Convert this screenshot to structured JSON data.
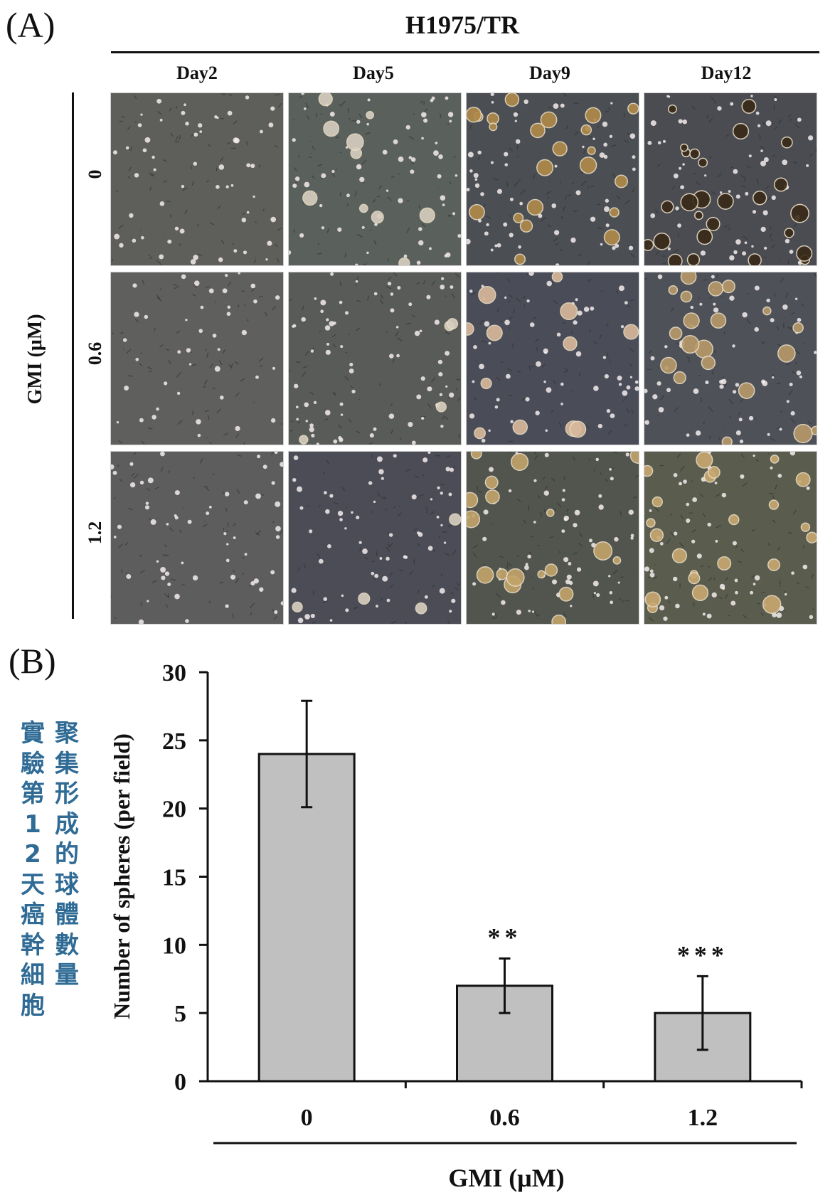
{
  "panel_a": {
    "label": "(A)",
    "cell_line": "H1975/TR",
    "columns": [
      "Day2",
      "Day5",
      "Day9",
      "Day12"
    ],
    "row_axis_title": "GMI (μM)",
    "rows": [
      "0",
      "0.6",
      "1.2"
    ],
    "micrographs": [
      {
        "name": "micrograph-0-day2",
        "tint": "#5e5e5a",
        "cells": 55,
        "spheres": 0,
        "sphere_color": "#c9b48a"
      },
      {
        "name": "micrograph-0-day5",
        "tint": "#5a605b",
        "cells": 60,
        "spheres": 10,
        "sphere_color": "#d8cfc0"
      },
      {
        "name": "micrograph-0-day9",
        "tint": "#4b4e52",
        "cells": 60,
        "spheres": 22,
        "sphere_color": "#b08a4a"
      },
      {
        "name": "micrograph-0-day12",
        "tint": "#4a4c52",
        "cells": 55,
        "spheres": 26,
        "sphere_color": "#3a2a18"
      },
      {
        "name": "micrograph-06-day2",
        "tint": "#5f605e",
        "cells": 40,
        "spheres": 0,
        "sphere_color": "#c9b48a"
      },
      {
        "name": "micrograph-06-day5",
        "tint": "#595b58",
        "cells": 70,
        "spheres": 4,
        "sphere_color": "#d8cfc0"
      },
      {
        "name": "micrograph-06-day9",
        "tint": "#4a4d58",
        "cells": 55,
        "spheres": 12,
        "sphere_color": "#d9b99a"
      },
      {
        "name": "micrograph-06-day12",
        "tint": "#4e5157",
        "cells": 55,
        "spheres": 20,
        "sphere_color": "#b89a6a"
      },
      {
        "name": "micrograph-12-day2",
        "tint": "#5c5d5c",
        "cells": 55,
        "spheres": 0,
        "sphere_color": "#c9b48a"
      },
      {
        "name": "micrograph-12-day5",
        "tint": "#4b4c56",
        "cells": 60,
        "spheres": 4,
        "sphere_color": "#d8cfc0"
      },
      {
        "name": "micrograph-12-day9",
        "tint": "#52544e",
        "cells": 60,
        "spheres": 18,
        "sphere_color": "#c2a46a"
      },
      {
        "name": "micrograph-12-day12",
        "tint": "#5a5c4e",
        "cells": 55,
        "spheres": 22,
        "sphere_color": "#c8a870"
      }
    ]
  },
  "panel_b": {
    "label": "(B)",
    "annotation_col1": "實驗第12天癌幹細胞",
    "annotation_col2": "聚集形成的球體數量"
  },
  "colors": {
    "bar_fill": "#c0c0c0",
    "ink": "#111111",
    "annotation": "#2f6b95"
  },
  "chart_data": {
    "type": "bar",
    "title": "",
    "xlabel": "GMI (μM)",
    "ylabel": "Number of spheres (per field)",
    "categories": [
      "0",
      "0.6",
      "1.2"
    ],
    "values": [
      24,
      7,
      5
    ],
    "errors": [
      3.9,
      2.0,
      2.7
    ],
    "significance": [
      "",
      "**",
      "***"
    ],
    "ylim": [
      0,
      30
    ],
    "yticks": [
      0,
      5,
      10,
      15,
      20,
      25,
      30
    ],
    "grid": false,
    "legend": "none"
  }
}
